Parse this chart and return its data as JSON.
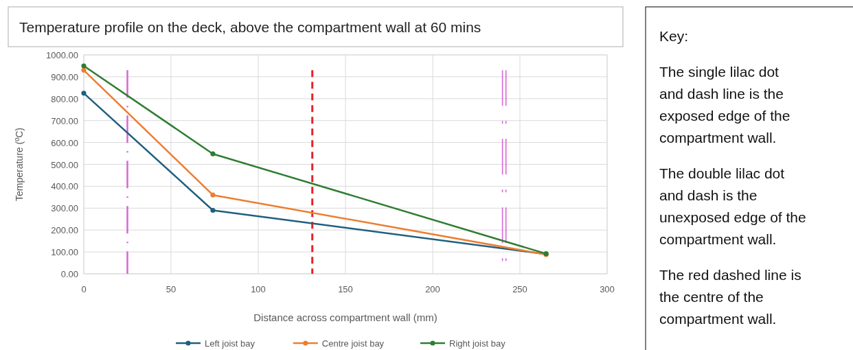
{
  "chart_data": {
    "type": "line",
    "title": "Temperature profile on the deck, above the compartment wall at 60 mins",
    "xlabel": "Distance across compartment wall (mm)",
    "ylabel": "Temperature (ºC)",
    "x": [
      0,
      74,
      265
    ],
    "series": [
      {
        "name": "Left joist bay",
        "color": "#1f5f7f",
        "values": [
          825,
          290,
          90
        ]
      },
      {
        "name": "Centre joist bay",
        "color": "#ed7d31",
        "values": [
          930,
          360,
          88
        ]
      },
      {
        "name": "Right joist bay",
        "color": "#2e7d32",
        "values": [
          950,
          548,
          92
        ]
      }
    ],
    "xlim": [
      0,
      300
    ],
    "xticks": [
      0,
      50,
      100,
      150,
      200,
      250,
      300
    ],
    "ylim": [
      0,
      1000
    ],
    "yticks": [
      {
        "value": 0,
        "label": "0.00"
      },
      {
        "value": 100,
        "label": "100.00"
      },
      {
        "value": 200,
        "label": "200.00"
      },
      {
        "value": 300,
        "label": "300.00"
      },
      {
        "value": 400,
        "label": "400.00"
      },
      {
        "value": 500,
        "label": "500.00"
      },
      {
        "value": 600,
        "label": "600.00"
      },
      {
        "value": 700,
        "label": "700.00"
      },
      {
        "value": 800,
        "label": "800.00"
      },
      {
        "value": 900,
        "label": "900.00"
      },
      {
        "value": 1000,
        "label": "1000.00"
      }
    ],
    "grid": true,
    "legend": "bottom",
    "marker": "circle",
    "line_style": "solid",
    "ref_lines": [
      {
        "axis": "x",
        "value": 25,
        "color": "#d966d6",
        "line_style": "dashdot"
      },
      {
        "axis": "x",
        "value": 131,
        "color": "#e8202a",
        "line_style": "dashed"
      },
      {
        "axis": "x",
        "value": 240,
        "color": "#d966d6",
        "line_style": "dashdot2"
      },
      {
        "axis": "x",
        "value": 242,
        "color": "#d966d6",
        "line_style": "dashdot2"
      }
    ],
    "annotations": [
      "Key:",
      "The single lilac dot and dash line is the exposed edge of the compartment wall.",
      "The double lilac dot and dash is the unexposed edge of the compartment wall.",
      "The red dashed line is the centre of the compartment wall."
    ]
  }
}
